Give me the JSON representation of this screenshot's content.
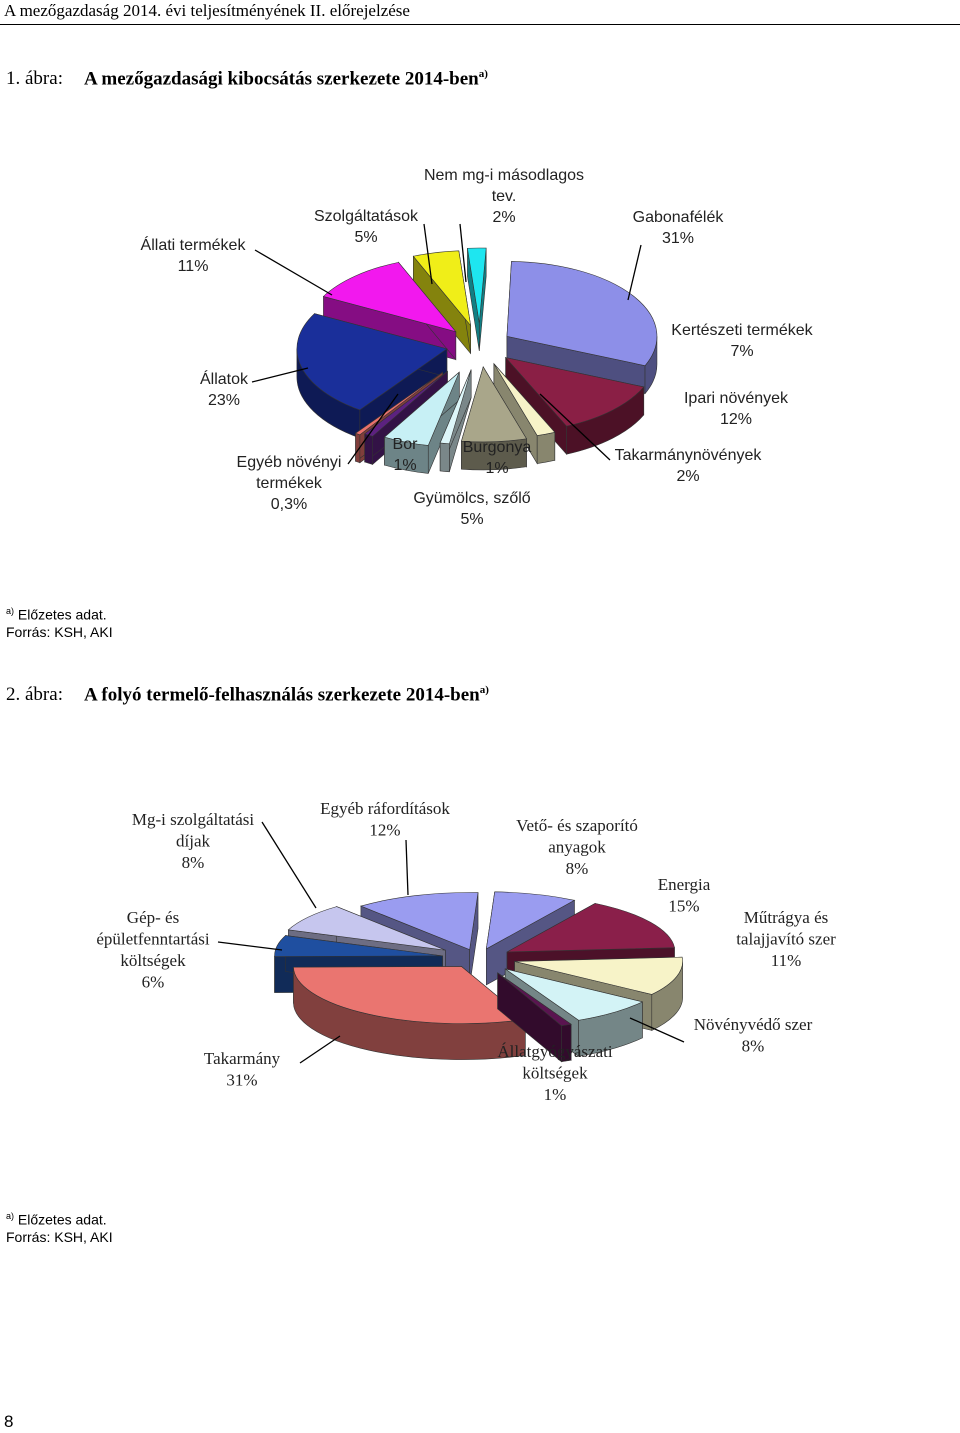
{
  "header": {
    "title": "A mezőgazdaság 2014. évi teljesítményének II. előrejelzése"
  },
  "figure1": {
    "number": "1. ábra:",
    "title": "A mezőgazdasági kibocsátás szerkezete 2014-ben",
    "title_sup": "a)",
    "footnote_mark": "a)",
    "footnote": "Előzetes adat.",
    "source": "Forrás: KSH, AKI"
  },
  "figure2": {
    "number": "2. ábra:",
    "title": "A folyó termelő-felhasználás szerkezete 2014-ben",
    "title_sup": "a)",
    "footnote_mark": "a)",
    "footnote": "Előzetes adat.",
    "source": "Forrás: KSH, AKI"
  },
  "page_number": "8",
  "chart_data": [
    {
      "type": "pie",
      "title": "A mezőgazdasági kibocsátás szerkezete 2014-ben",
      "unit": "%",
      "slices": [
        {
          "label": "Gabonafélék",
          "value": 31,
          "value_text": "31%",
          "color": "#8d8fe8"
        },
        {
          "label": "Ipari növények",
          "value": 12,
          "value_text": "12%",
          "color": "#8a1f45"
        },
        {
          "label": "Takarmánynövények",
          "value": 2,
          "value_text": "2%",
          "color": "#f7f3c8"
        },
        {
          "label": "Kertészeti termékek",
          "value": 7,
          "value_text": "7%",
          "color": "#a9a68a"
        },
        {
          "label": "Burgonya",
          "value": 1,
          "value_text": "1%",
          "color": "#ddf6f9"
        },
        {
          "label": "Gyümölcs, szőlő",
          "value": 5,
          "value_text": "5%",
          "color": "#c7f0f5"
        },
        {
          "label": "Bor",
          "value": 1,
          "value_text": "1%",
          "color": "#5c2180"
        },
        {
          "label": "Egyéb növényi termékek",
          "value": 0.3,
          "value_text": "0,3%",
          "color": "#e9716c"
        },
        {
          "label": "Állatok",
          "value": 23,
          "value_text": "23%",
          "color": "#1a2f9a"
        },
        {
          "label": "Állati termékek",
          "value": 11,
          "value_text": "11%",
          "color": "#f218ee"
        },
        {
          "label": "Szolgáltatások",
          "value": 5,
          "value_text": "5%",
          "color": "#f0ee18"
        },
        {
          "label": "Nem mg-i másodlagos tev.",
          "value": 2,
          "value_text": "2%",
          "color": "#1ee6f0"
        }
      ]
    },
    {
      "type": "pie",
      "title": "A folyó termelő-felhasználás szerkezete 2014-ben",
      "unit": "%",
      "slices": [
        {
          "label": "Vető- és szaporító anyagok",
          "value": 8,
          "value_text": "8%",
          "color": "#9a9cf0"
        },
        {
          "label": "Energia",
          "value": 15,
          "value_text": "15%",
          "color": "#8a1f4a"
        },
        {
          "label": "Műtrágya és talajjavító szer",
          "value": 11,
          "value_text": "11%",
          "color": "#f7f3c8"
        },
        {
          "label": "Növényvédő szer",
          "value": 8,
          "value_text": "8%",
          "color": "#d3f3f6"
        },
        {
          "label": "Állatgyógyászati költségek",
          "value": 1,
          "value_text": "1%",
          "color": "#5a1450"
        },
        {
          "label": "Takarmány",
          "value": 31,
          "value_text": "31%",
          "color": "#ea7570"
        },
        {
          "label": "Gép- és épületfenntartási költségek",
          "value": 6,
          "value_text": "6%",
          "color": "#1f4fa0"
        },
        {
          "label": "Mg-i szolgáltatási díjak",
          "value": 8,
          "value_text": "8%",
          "color": "#c6c6ee"
        },
        {
          "label": "Egyéb ráfordítások",
          "value": 12,
          "value_text": "12%",
          "color": "#9a9cf0"
        }
      ]
    }
  ],
  "chart_labels": [
    [
      [
        "Gabonafélék",
        "31%"
      ],
      [
        "Ipari növények",
        "12%"
      ],
      [
        "Takarmánynövények",
        "2%"
      ],
      [
        "Kertészeti termékek",
        "7%"
      ],
      [
        "Burgonya",
        "1%"
      ],
      [
        "Gyümölcs, szőlő",
        "5%"
      ],
      [
        "Bor",
        "1%"
      ],
      [
        "Egyéb növényi",
        "termékek",
        "0,3%"
      ],
      [
        "Állatok",
        "23%"
      ],
      [
        "Állati termékek",
        "11%"
      ],
      [
        "Szolgáltatások",
        "5%"
      ],
      [
        "Nem mg-i másodlagos",
        "tev.",
        "2%"
      ]
    ],
    [
      [
        "Vető- és szaporító",
        "anyagok",
        "8%"
      ],
      [
        "Energia",
        "15%"
      ],
      [
        "Műtrágya és",
        "talajjavító szer",
        "11%"
      ],
      [
        "Növényvédő szer",
        "8%"
      ],
      [
        "Állatgyógyászati",
        "költségek",
        "1%"
      ],
      [
        "Takarmány",
        "31%"
      ],
      [
        "Gép- és",
        "épületfenntartási",
        "költségek",
        "6%"
      ],
      [
        "Mg-i szolgáltatási",
        "díjak",
        "8%"
      ],
      [
        "Egyéb ráfordítások",
        "12%"
      ]
    ]
  ]
}
